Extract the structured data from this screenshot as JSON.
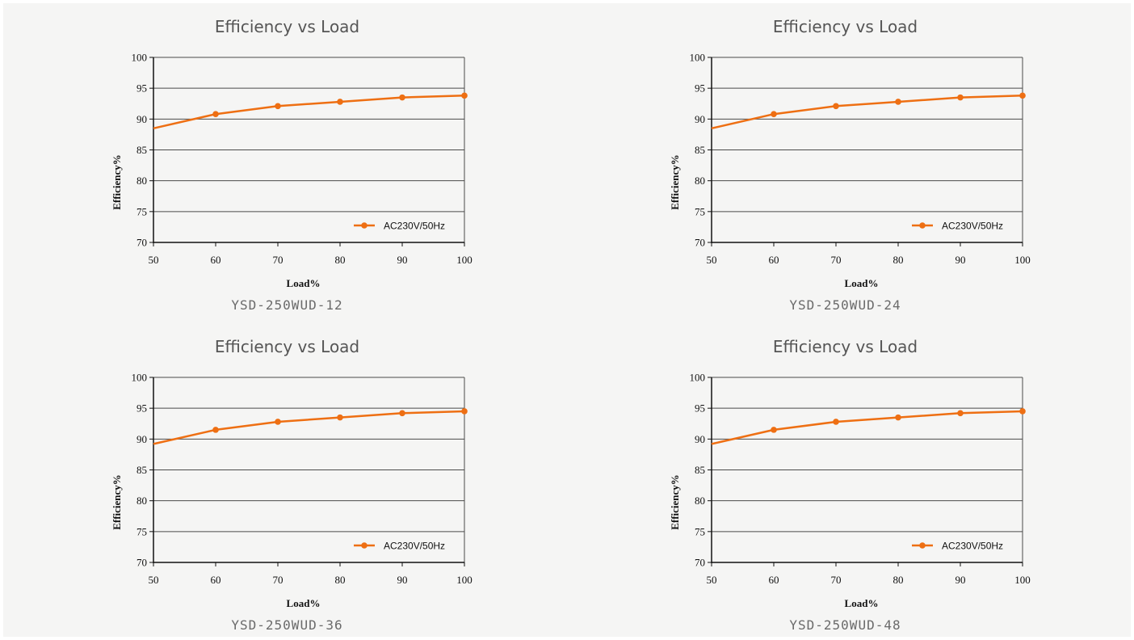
{
  "colors": {
    "series": "#ee6f13",
    "grid": "#4a4a4a",
    "axis": "#111111",
    "background": "#f5f5f4"
  },
  "chart_data": [
    {
      "type": "line",
      "title": "Efficiency vs Load",
      "caption": "YSD-250WUD-12",
      "xlabel": "Load%",
      "ylabel": "Efficiency%",
      "xlim": [
        50,
        100
      ],
      "ylim": [
        70,
        100
      ],
      "xticks": [
        50,
        60,
        70,
        80,
        90,
        100
      ],
      "yticks": [
        70,
        75,
        80,
        85,
        90,
        95,
        100
      ],
      "grid": "horizontal",
      "legend_position": "bottom-right",
      "series": [
        {
          "name": "AC230V/50Hz",
          "x": [
            50,
            60,
            70,
            80,
            90,
            100
          ],
          "y": [
            88.5,
            90.8,
            92.1,
            92.8,
            93.5,
            93.8
          ]
        }
      ]
    },
    {
      "type": "line",
      "title": "Efficiency vs Load",
      "caption": "YSD-250WUD-24",
      "xlabel": "Load%",
      "ylabel": "Efficiency%",
      "xlim": [
        50,
        100
      ],
      "ylim": [
        70,
        100
      ],
      "xticks": [
        50,
        60,
        70,
        80,
        90,
        100
      ],
      "yticks": [
        70,
        75,
        80,
        85,
        90,
        95,
        100
      ],
      "grid": "horizontal",
      "legend_position": "bottom-right",
      "series": [
        {
          "name": "AC230V/50Hz",
          "x": [
            50,
            60,
            70,
            80,
            90,
            100
          ],
          "y": [
            88.5,
            90.8,
            92.1,
            92.8,
            93.5,
            93.8
          ]
        }
      ]
    },
    {
      "type": "line",
      "title": "Efficiency vs Load",
      "caption": "YSD-250WUD-36",
      "xlabel": "Load%",
      "ylabel": "Efficiency%",
      "xlim": [
        50,
        100
      ],
      "ylim": [
        70,
        100
      ],
      "xticks": [
        50,
        60,
        70,
        80,
        90,
        100
      ],
      "yticks": [
        70,
        75,
        80,
        85,
        90,
        95,
        100
      ],
      "grid": "horizontal",
      "legend_position": "bottom-right",
      "series": [
        {
          "name": "AC230V/50Hz",
          "x": [
            50,
            60,
            70,
            80,
            90,
            100
          ],
          "y": [
            89.2,
            91.5,
            92.8,
            93.5,
            94.2,
            94.5
          ]
        }
      ]
    },
    {
      "type": "line",
      "title": "Efficiency vs Load",
      "caption": "YSD-250WUD-48",
      "xlabel": "Load%",
      "ylabel": "Efficiency%",
      "xlim": [
        50,
        100
      ],
      "ylim": [
        70,
        100
      ],
      "xticks": [
        50,
        60,
        70,
        80,
        90,
        100
      ],
      "yticks": [
        70,
        75,
        80,
        85,
        90,
        95,
        100
      ],
      "grid": "horizontal",
      "legend_position": "bottom-right",
      "series": [
        {
          "name": "AC230V/50Hz",
          "x": [
            50,
            60,
            70,
            80,
            90,
            100
          ],
          "y": [
            89.2,
            91.5,
            92.8,
            93.5,
            94.2,
            94.5
          ]
        }
      ]
    }
  ]
}
